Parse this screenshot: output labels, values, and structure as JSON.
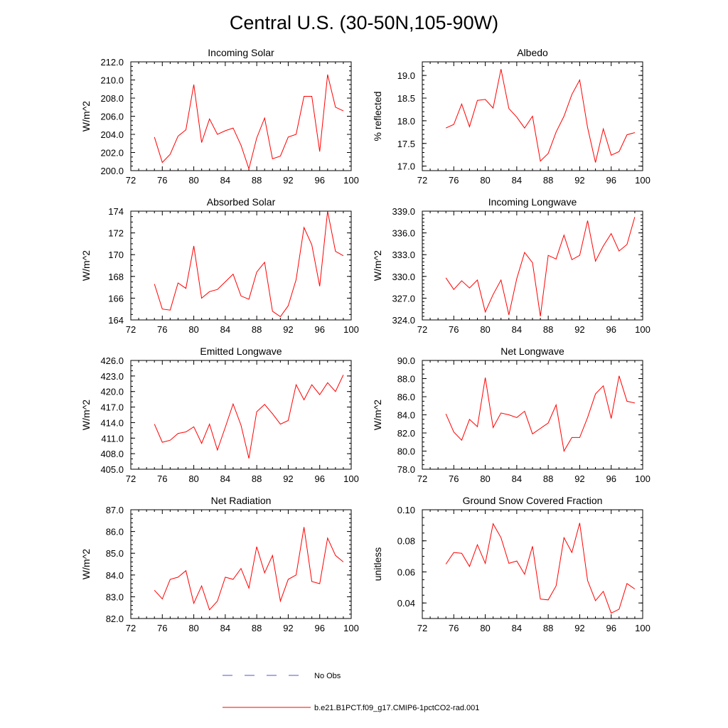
{
  "title": "Central U.S. (30-50N,105-90W)",
  "legend": {
    "placement": "bottom-center",
    "entries": [
      {
        "label": "No Obs",
        "color": "#5555cc",
        "dash": "dashed"
      },
      {
        "label": "b.e21.B1PCT.f09_g17.CMIP6-1pctCO2-rad.001",
        "color": "#ff0000",
        "dash": "solid"
      }
    ]
  },
  "series_color": "#ff0000",
  "chart_data": [
    {
      "type": "line",
      "title": "Incoming Solar",
      "ylabel": "W/m^2",
      "xlim": [
        72,
        100
      ],
      "ylim": [
        200,
        212
      ],
      "xticks": [
        72,
        76,
        80,
        84,
        88,
        92,
        96,
        100
      ],
      "yticks": [
        200,
        202,
        204,
        206,
        208,
        210,
        212
      ],
      "ytick_labels": [
        "200.0",
        "202.0",
        "204.0",
        "206.0",
        "208.0",
        "210.0",
        "212.0"
      ],
      "yminor": 0.5,
      "x": [
        75,
        76,
        77,
        78,
        79,
        80,
        81,
        82,
        83,
        84,
        85,
        86,
        87,
        88,
        89,
        90,
        91,
        92,
        93,
        94,
        95,
        96,
        97,
        98,
        99
      ],
      "values": [
        203.7,
        200.9,
        201.8,
        203.8,
        204.5,
        209.5,
        203.1,
        205.7,
        204.0,
        204.4,
        204.7,
        202.8,
        200.2,
        203.6,
        205.8,
        201.3,
        201.6,
        203.7,
        204.0,
        208.2,
        208.2,
        202.1,
        210.6,
        207.0,
        206.6
      ]
    },
    {
      "type": "line",
      "title": "Albedo",
      "ylabel": "% reflected",
      "xlim": [
        72,
        100
      ],
      "ylim": [
        16.9,
        19.3
      ],
      "xticks": [
        72,
        76,
        80,
        84,
        88,
        92,
        96,
        100
      ],
      "yticks": [
        17.0,
        17.5,
        18.0,
        18.5,
        19.0
      ],
      "ytick_labels": [
        "17.0",
        "17.5",
        "18.0",
        "18.5",
        "19.0"
      ],
      "yminor": 0.1,
      "x": [
        75,
        76,
        77,
        78,
        79,
        80,
        81,
        82,
        83,
        84,
        85,
        86,
        87,
        88,
        89,
        90,
        91,
        92,
        93,
        94,
        95,
        96,
        97,
        98,
        99
      ],
      "values": [
        17.84,
        17.92,
        18.37,
        17.87,
        18.45,
        18.47,
        18.28,
        19.14,
        18.27,
        18.08,
        17.84,
        18.1,
        17.11,
        17.28,
        17.75,
        18.1,
        18.58,
        18.9,
        17.85,
        17.08,
        17.82,
        17.24,
        17.32,
        17.69,
        17.74
      ]
    },
    {
      "type": "line",
      "title": "Absorbed Solar",
      "ylabel": "W/m^2",
      "xlim": [
        72,
        100
      ],
      "ylim": [
        164,
        174
      ],
      "xticks": [
        72,
        76,
        80,
        84,
        88,
        92,
        96,
        100
      ],
      "yticks": [
        164,
        166,
        168,
        170,
        172,
        174
      ],
      "ytick_labels": [
        "164",
        "166",
        "168",
        "170",
        "172",
        "174"
      ],
      "yminor": 0.5,
      "x": [
        75,
        76,
        77,
        78,
        79,
        80,
        81,
        82,
        83,
        84,
        85,
        86,
        87,
        88,
        89,
        90,
        91,
        92,
        93,
        94,
        95,
        96,
        97,
        98,
        99
      ],
      "values": [
        167.3,
        165.0,
        164.9,
        167.4,
        166.9,
        170.8,
        166.0,
        166.6,
        166.8,
        167.5,
        168.2,
        166.2,
        165.9,
        168.4,
        169.3,
        164.8,
        164.3,
        165.3,
        167.7,
        172.5,
        170.9,
        167.1,
        174.0,
        170.3,
        169.9
      ]
    },
    {
      "type": "line",
      "title": "Incoming Longwave",
      "ylabel": "W/m^2",
      "xlim": [
        72,
        100
      ],
      "ylim": [
        324,
        339
      ],
      "xticks": [
        72,
        76,
        80,
        84,
        88,
        92,
        96,
        100
      ],
      "yticks": [
        324,
        327,
        330,
        333,
        336,
        339
      ],
      "ytick_labels": [
        "324.0",
        "327.0",
        "330.0",
        "333.0",
        "336.0",
        "339.0"
      ],
      "yminor": 0.5,
      "x": [
        75,
        76,
        77,
        78,
        79,
        80,
        81,
        82,
        83,
        84,
        85,
        86,
        87,
        88,
        89,
        90,
        91,
        92,
        93,
        94,
        95,
        96,
        97,
        98,
        99
      ],
      "values": [
        329.8,
        328.2,
        329.4,
        328.4,
        329.5,
        325.1,
        327.5,
        329.5,
        324.7,
        329.7,
        333.3,
        331.9,
        324.5,
        332.9,
        332.4,
        335.7,
        332.3,
        332.9,
        337.7,
        332.1,
        334.2,
        335.9,
        333.5,
        334.4,
        338.2
      ]
    },
    {
      "type": "line",
      "title": "Emitted Longwave",
      "ylabel": "W/m^2",
      "xlim": [
        72,
        100
      ],
      "ylim": [
        405,
        426
      ],
      "xticks": [
        72,
        76,
        80,
        84,
        88,
        92,
        96,
        100
      ],
      "yticks": [
        405,
        408,
        411,
        414,
        417,
        420,
        423,
        426
      ],
      "ytick_labels": [
        "405.0",
        "408.0",
        "411.0",
        "414.0",
        "417.0",
        "420.0",
        "423.0",
        "426.0"
      ],
      "yminor": 1,
      "x": [
        75,
        76,
        77,
        78,
        79,
        80,
        81,
        82,
        83,
        84,
        85,
        86,
        87,
        88,
        89,
        90,
        91,
        92,
        93,
        94,
        95,
        96,
        97,
        98,
        99
      ],
      "values": [
        413.7,
        410.2,
        410.6,
        411.9,
        412.2,
        413.2,
        410.0,
        413.7,
        408.7,
        413.1,
        417.6,
        413.5,
        407.1,
        416.1,
        417.5,
        415.7,
        413.7,
        414.4,
        421.3,
        418.4,
        421.3,
        419.4,
        421.7,
        420.0,
        423.2
      ]
    },
    {
      "type": "line",
      "title": "Net Longwave",
      "ylabel": "W/m^2",
      "xlim": [
        72,
        100
      ],
      "ylim": [
        78,
        90
      ],
      "xticks": [
        72,
        76,
        80,
        84,
        88,
        92,
        96,
        100
      ],
      "yticks": [
        78,
        80,
        82,
        84,
        86,
        88,
        90
      ],
      "ytick_labels": [
        "78.0",
        "80.0",
        "82.0",
        "84.0",
        "86.0",
        "88.0",
        "90.0"
      ],
      "yminor": 0.5,
      "x": [
        75,
        76,
        77,
        78,
        79,
        80,
        81,
        82,
        83,
        84,
        85,
        86,
        87,
        88,
        89,
        90,
        91,
        92,
        93,
        94,
        95,
        96,
        97,
        98,
        99
      ],
      "values": [
        84.1,
        82.1,
        81.2,
        83.5,
        82.7,
        88.1,
        82.6,
        84.2,
        84.0,
        83.7,
        84.4,
        81.9,
        82.5,
        83.1,
        85.1,
        80.0,
        81.5,
        81.5,
        83.7,
        86.3,
        87.2,
        83.6,
        88.3,
        85.5,
        85.3
      ]
    },
    {
      "type": "line",
      "title": "Net Radiation",
      "ylabel": "W/m^2",
      "xlim": [
        72,
        100
      ],
      "ylim": [
        82,
        87
      ],
      "xticks": [
        72,
        76,
        80,
        84,
        88,
        92,
        96,
        100
      ],
      "yticks": [
        82,
        83,
        84,
        85,
        86,
        87
      ],
      "ytick_labels": [
        "82.0",
        "83.0",
        "84.0",
        "85.0",
        "86.0",
        "87.0"
      ],
      "yminor": 0.2,
      "x": [
        75,
        76,
        77,
        78,
        79,
        80,
        81,
        82,
        83,
        84,
        85,
        86,
        87,
        88,
        89,
        90,
        91,
        92,
        93,
        94,
        95,
        96,
        97,
        98,
        99
      ],
      "values": [
        83.3,
        82.9,
        83.8,
        83.9,
        84.2,
        82.7,
        83.5,
        82.4,
        82.8,
        83.9,
        83.8,
        84.3,
        83.4,
        85.3,
        84.1,
        84.9,
        82.8,
        83.8,
        84.0,
        86.2,
        83.7,
        83.6,
        85.7,
        84.9,
        84.6
      ]
    },
    {
      "type": "line",
      "title": "Ground Snow Covered Fraction",
      "ylabel": "unitless",
      "xlim": [
        72,
        100
      ],
      "ylim": [
        0.03,
        0.1
      ],
      "xticks": [
        72,
        76,
        80,
        84,
        88,
        92,
        96,
        100
      ],
      "yticks": [
        0.04,
        0.06,
        0.08,
        0.1
      ],
      "ytick_labels": [
        "0.04",
        "0.06",
        "0.08",
        "0.10"
      ],
      "yminor": 0.005,
      "x": [
        75,
        76,
        77,
        78,
        79,
        80,
        81,
        82,
        83,
        84,
        85,
        86,
        87,
        88,
        89,
        90,
        91,
        92,
        93,
        94,
        95,
        96,
        97,
        98,
        99
      ],
      "values": [
        0.065,
        0.0725,
        0.072,
        0.0635,
        0.0775,
        0.0655,
        0.091,
        0.082,
        0.0655,
        0.067,
        0.0585,
        0.0765,
        0.0425,
        0.042,
        0.051,
        0.082,
        0.0725,
        0.0915,
        0.0545,
        0.0415,
        0.0475,
        0.0335,
        0.036,
        0.0525,
        0.049
      ]
    }
  ]
}
